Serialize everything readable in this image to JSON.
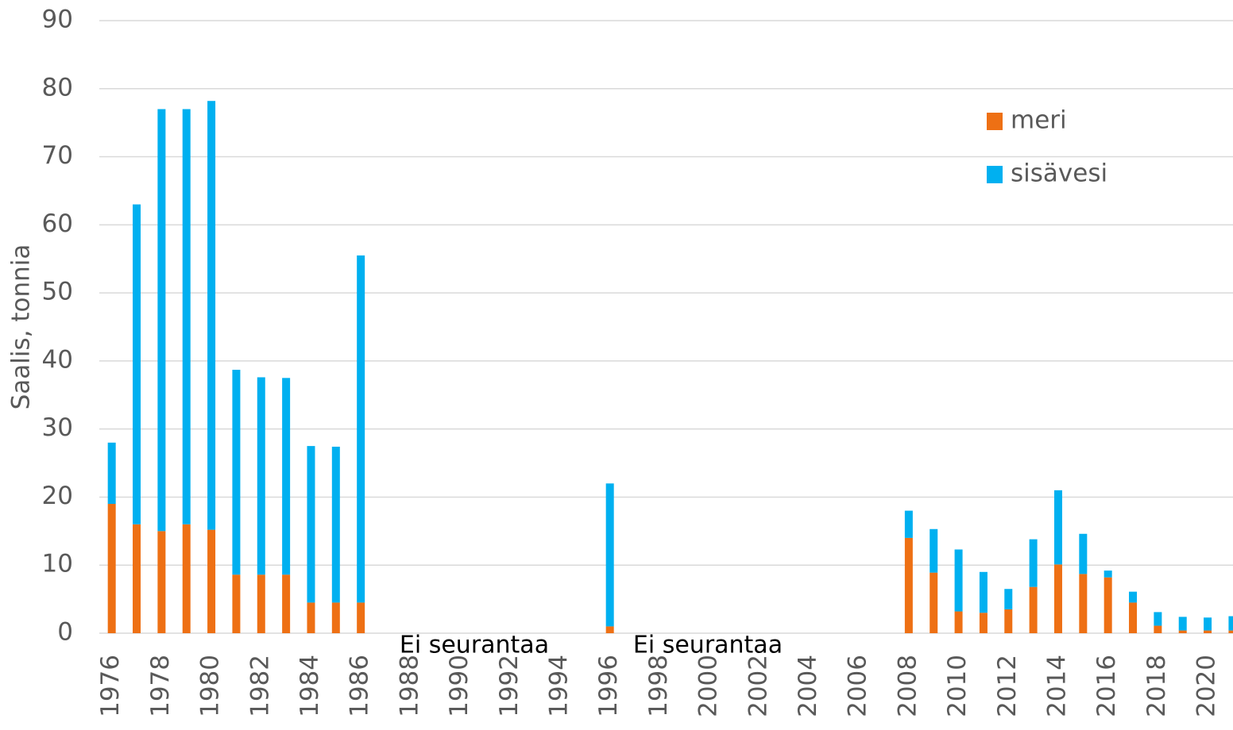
{
  "chart_data": {
    "type": "bar",
    "stacked": true,
    "ylabel": "Saalis, tonnia",
    "categories": [
      "1976",
      null,
      "1978",
      null,
      "1980",
      null,
      "1982",
      null,
      "1984",
      null,
      "1986",
      null,
      "1988",
      null,
      "1990",
      null,
      "1992",
      null,
      "1994",
      null,
      "1996",
      null,
      "1998",
      null,
      "2000",
      null,
      "2002",
      null,
      "2004",
      null,
      "2006",
      null,
      "2008",
      null,
      "2010",
      null,
      "2012",
      null,
      "2014",
      null,
      "2016",
      null,
      "2018",
      null,
      "2020",
      null
    ],
    "series": [
      {
        "name": "meri",
        "color": "#ee7014",
        "values": [
          19,
          16,
          15,
          16,
          15.2,
          8.6,
          8.6,
          8.6,
          4.5,
          4.5,
          4.5,
          null,
          null,
          null,
          null,
          null,
          null,
          null,
          null,
          null,
          1,
          null,
          null,
          null,
          null,
          null,
          null,
          null,
          null,
          null,
          null,
          null,
          14,
          8.9,
          3.2,
          3,
          3.5,
          6.8,
          10.1,
          8.7,
          8.2,
          4.5,
          1.1,
          0.4,
          0.4,
          0.4
        ]
      },
      {
        "name": "sisävesi",
        "color": "#00b0f0",
        "values": [
          9,
          47,
          62,
          61,
          63,
          30.1,
          29,
          28.9,
          23,
          22.9,
          51,
          null,
          null,
          null,
          null,
          null,
          null,
          null,
          null,
          null,
          21,
          null,
          null,
          null,
          null,
          null,
          null,
          null,
          null,
          null,
          null,
          null,
          4,
          6.4,
          9.1,
          6,
          3,
          7,
          10.9,
          5.9,
          1,
          1.6,
          2,
          2,
          1.9,
          2.1
        ]
      }
    ],
    "annotations": [
      "Ei seurantaa",
      "Ei seurantaa"
    ],
    "ylim": [
      0,
      90
    ],
    "yticks": [
      0,
      10,
      20,
      30,
      40,
      50,
      60,
      70,
      80,
      90
    ],
    "grid": true,
    "legend": "upper right"
  }
}
